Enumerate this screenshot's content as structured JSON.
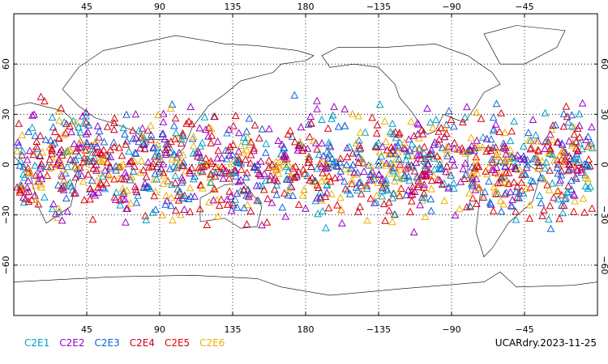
{
  "map": {
    "type": "scatter",
    "projection": "cylindrical-equidistant",
    "lon_range": [
      0,
      360
    ],
    "lat_range": [
      -90,
      90
    ],
    "marker": "open-triangle",
    "top_lon_ticks": [
      "45",
      "90",
      "135",
      "180",
      "−135",
      "−90",
      "−45"
    ],
    "bottom_lon_ticks": [
      "45",
      "90",
      "135",
      "180",
      "−135",
      "−90",
      "−45"
    ],
    "lat_ticks": [
      "60",
      "30",
      "0",
      "−30",
      "−60"
    ],
    "lat_tick_values": [
      60,
      30,
      0,
      -30,
      -60
    ],
    "lon_tick_values": [
      45,
      90,
      135,
      180,
      225,
      270,
      315
    ],
    "grid": "dotted"
  },
  "chart_data": {
    "type": "scatter",
    "x_range": [
      0,
      360
    ],
    "y_range": [
      -90,
      90
    ],
    "point_lat_band": [
      -45,
      45
    ],
    "series": [
      {
        "name": "C2E1",
        "color": "#00a0c8"
      },
      {
        "name": "C2E2",
        "color": "#9a00c8"
      },
      {
        "name": "C2E3",
        "color": "#1060d8"
      },
      {
        "name": "C2E4",
        "color": "#c80020"
      },
      {
        "name": "C2E5",
        "color": "#e00000"
      },
      {
        "name": "C2E6",
        "color": "#f0b000"
      }
    ]
  },
  "footer": {
    "label": "UCARdry.2023-11-25"
  }
}
